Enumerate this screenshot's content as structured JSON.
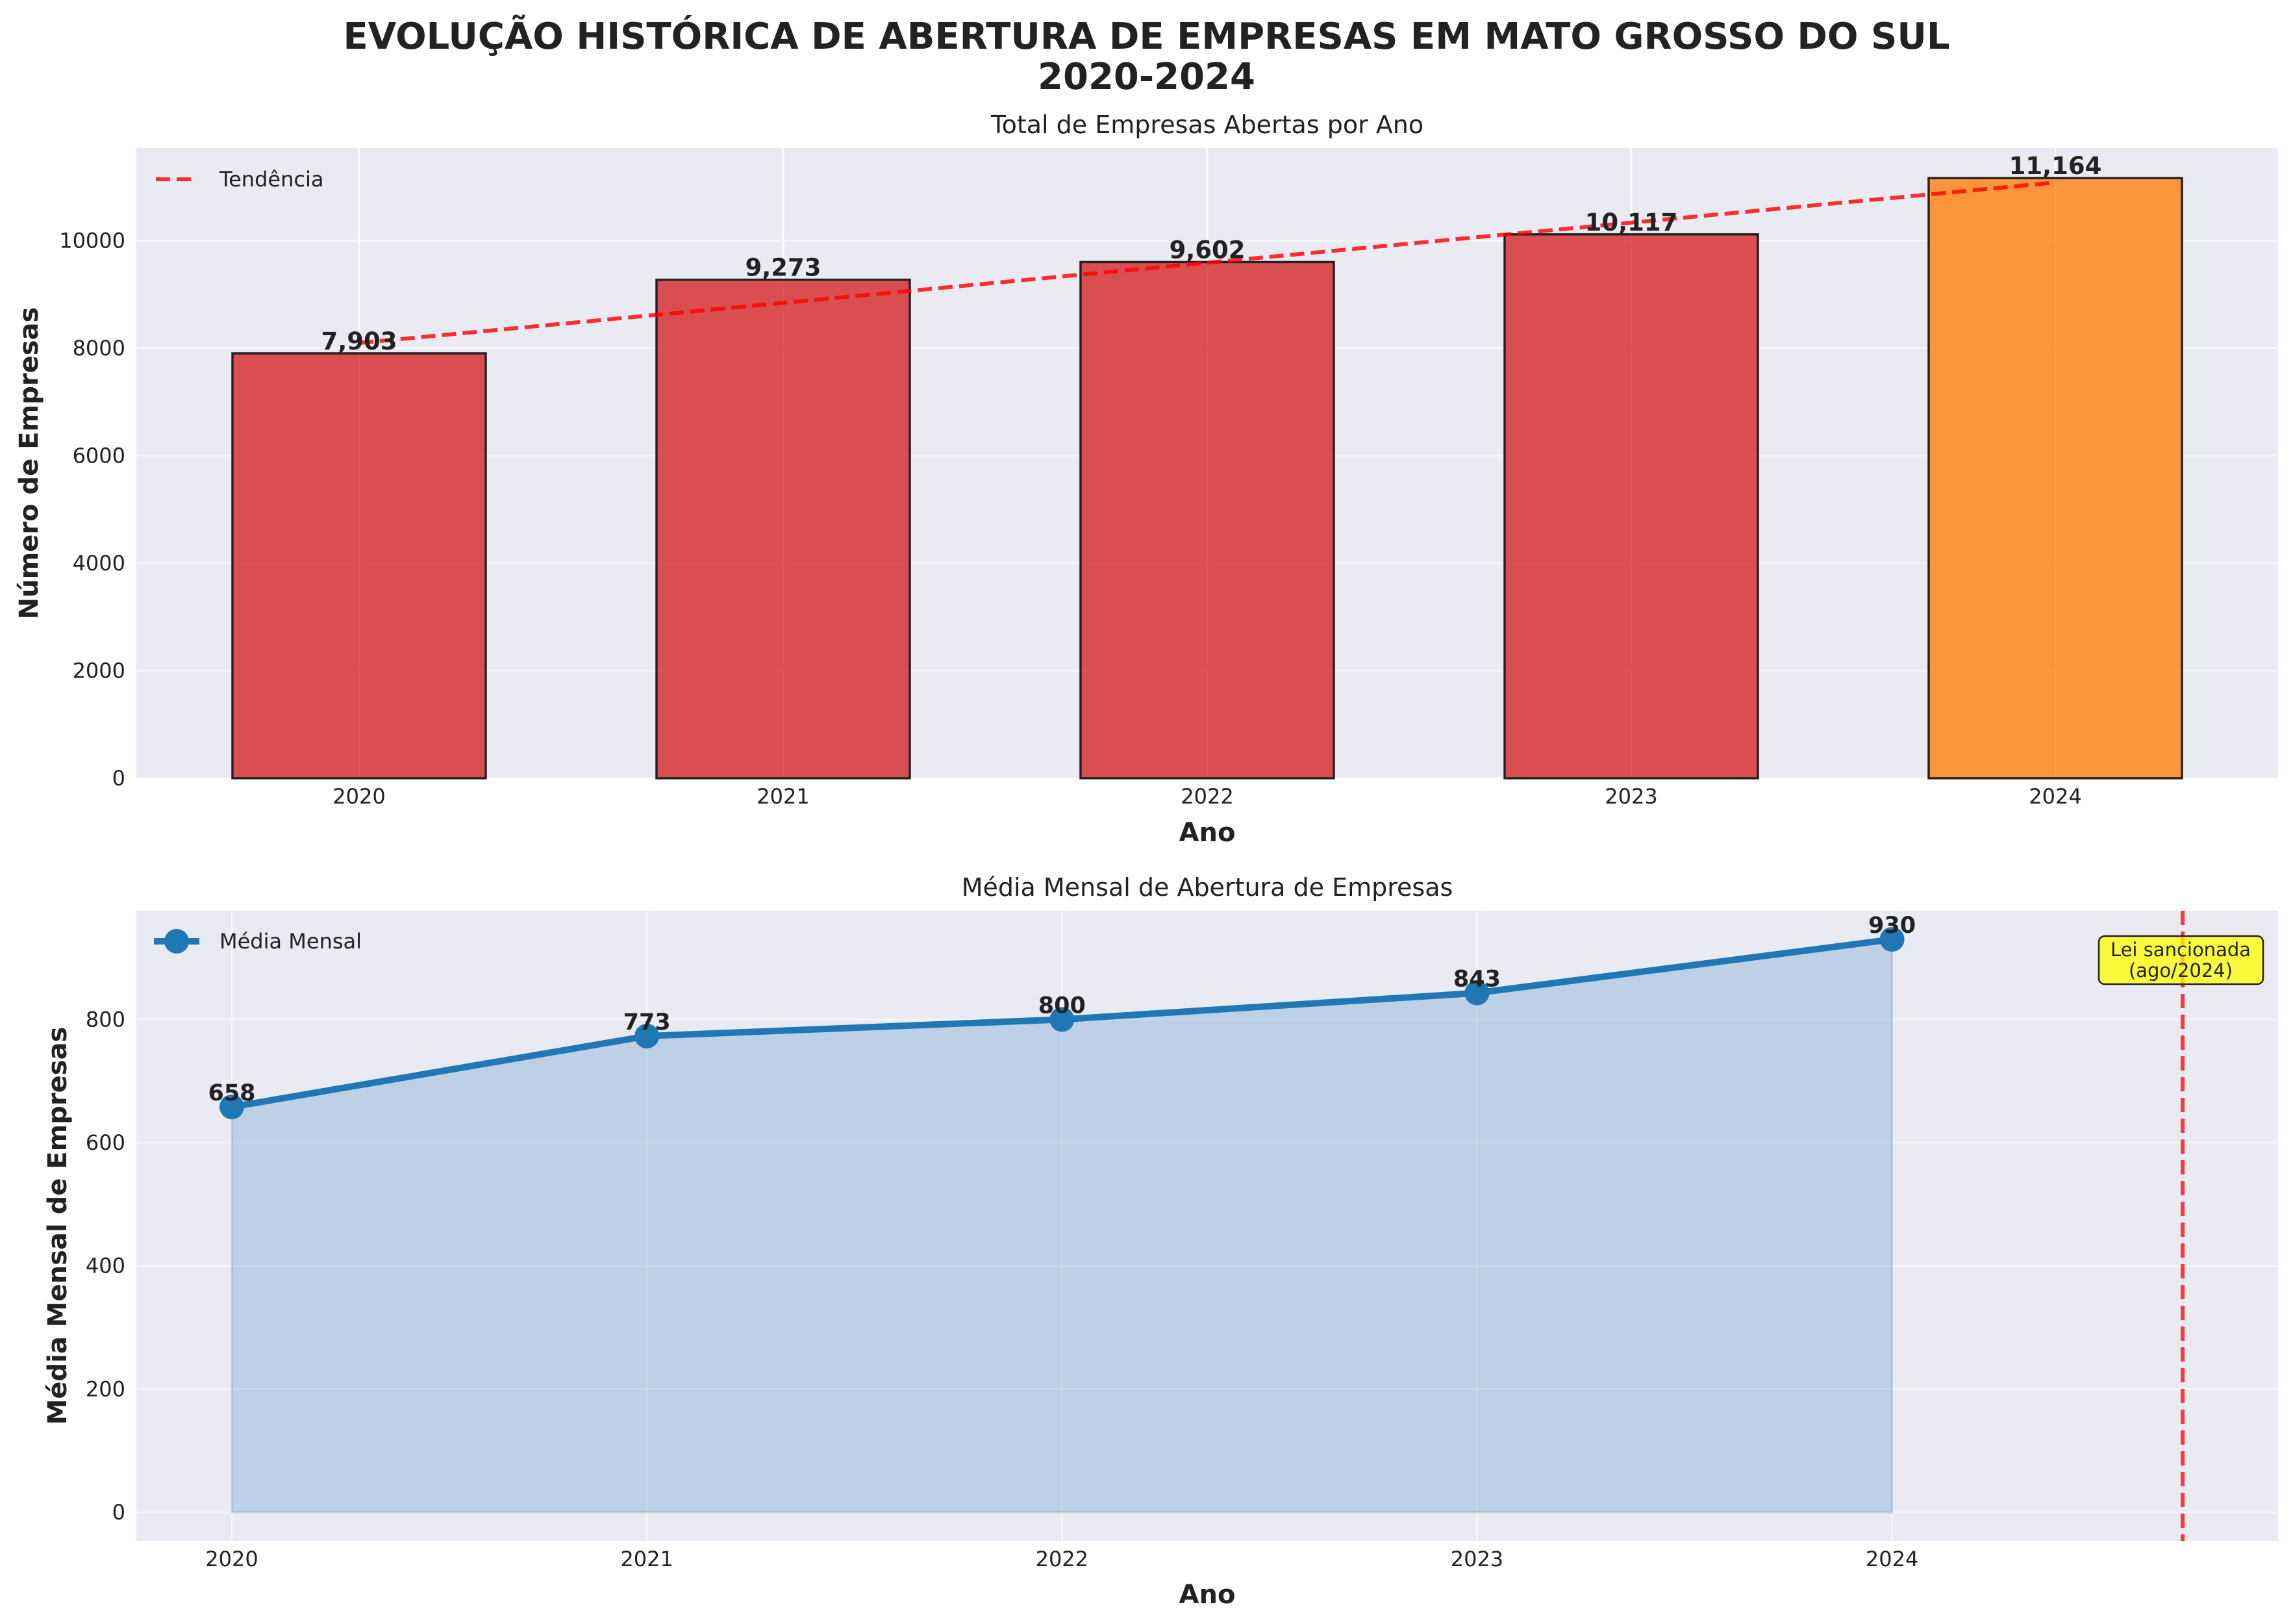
{
  "figure": {
    "title_line1": "EVOLUÇÃO HISTÓRICA DE ABERTURA DE EMPRESAS EM MATO GROSSO DO SUL",
    "title_line2": "2020-2024"
  },
  "chart_data": [
    {
      "type": "bar",
      "title": "Total de Empresas Abertas por Ano",
      "xlabel": "Ano",
      "ylabel": "Número de Empresas",
      "categories": [
        "2020",
        "2021",
        "2022",
        "2023",
        "2024"
      ],
      "values": [
        7903,
        9273,
        9602,
        10117,
        11164
      ],
      "value_labels": [
        "7,903",
        "9,273",
        "9,602",
        "10,117",
        "11,164"
      ],
      "bar_colors": [
        "#d62728",
        "#d62728",
        "#d62728",
        "#d62728",
        "#ff7f0e"
      ],
      "ylim": [
        0,
        11722
      ],
      "yticks": [
        0,
        2000,
        4000,
        6000,
        8000,
        10000
      ],
      "grid": true,
      "trend": {
        "label": "Tendência",
        "start": 8097,
        "end": 11082,
        "color": "#ff0000"
      },
      "legend": "top-left"
    },
    {
      "type": "area",
      "title": "Média Mensal de Abertura de Empresas",
      "xlabel": "Ano",
      "ylabel": "Média Mensal de Empresas",
      "x": [
        2020,
        2021,
        2022,
        2023,
        2024
      ],
      "values": [
        658,
        773,
        800,
        843,
        930
      ],
      "value_labels": [
        "658",
        "773",
        "800",
        "843",
        "930"
      ],
      "series_name": "Média Mensal",
      "line_color": "#1f77b4",
      "xlim": [
        2019.77,
        2024.93
      ],
      "ylim": [
        -46.5,
        976.5
      ],
      "yticks": [
        0,
        200,
        400,
        600,
        800
      ],
      "grid": true,
      "legend": "top-left",
      "event": {
        "x": 2024.7,
        "label_line1": "Lei sancionada",
        "label_line2": "(ago/2024)",
        "line_color": "#ff0000",
        "box_color": "#ffff00"
      }
    }
  ]
}
